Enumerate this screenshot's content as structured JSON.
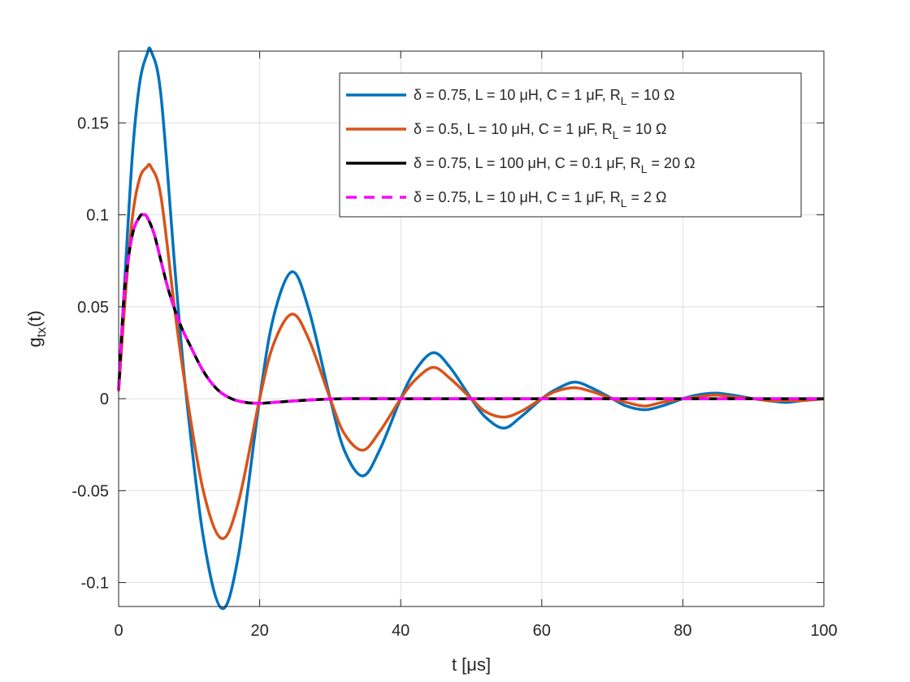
{
  "chart_data": {
    "type": "line",
    "title": "",
    "xlabel": "t [μs]",
    "ylabel": "g_tx(t)",
    "xlim": [
      0,
      100
    ],
    "ylim": [
      -0.113,
      0.189
    ],
    "grid": true,
    "legend_position": "top-right",
    "xticks": [
      0,
      20,
      40,
      60,
      80,
      100
    ],
    "xtick_labels": [
      "0",
      "20",
      "40",
      "60",
      "80",
      "100"
    ],
    "yticks": [
      -0.1,
      -0.05,
      0,
      0.05,
      0.1,
      0.15
    ],
    "ytick_labels": [
      "-0.1",
      "-0.05",
      "0",
      "0.05",
      "0.1",
      "0.15"
    ],
    "series": [
      {
        "name": "δ = 0.75, L = 10 μH, C = 1 μF, R_L = 10 Ω",
        "color": "#0072BD",
        "dash": "solid",
        "x": [
          0,
          1,
          2,
          3,
          4,
          4.6,
          6,
          8,
          9.5,
          12,
          14.6,
          17,
          20,
          22,
          24.6,
          27,
          30,
          32,
          34.6,
          37,
          40,
          42,
          44.6,
          47,
          50,
          52,
          54.6,
          57,
          60,
          62,
          64.6,
          67,
          70,
          72,
          74.6,
          77,
          80,
          82,
          84.6,
          87,
          90,
          92,
          94.6,
          97,
          100
        ],
        "y": [
          0.005,
          0.073,
          0.135,
          0.172,
          0.187,
          0.189,
          0.165,
          0.07,
          0.005,
          -0.075,
          -0.114,
          -0.085,
          0.0,
          0.045,
          0.069,
          0.048,
          0.0,
          -0.028,
          -0.042,
          -0.028,
          0.0,
          0.015,
          0.025,
          0.017,
          0.0,
          -0.01,
          -0.016,
          -0.01,
          0.0,
          0.005,
          0.009,
          0.006,
          0.0,
          -0.004,
          -0.006,
          -0.004,
          0.0,
          0.002,
          0.003,
          0.002,
          0.0,
          -0.001,
          -0.002,
          -0.001,
          0.0
        ]
      },
      {
        "name": "δ = 0.5, L = 10 μH, C = 1 μF, R_L = 10 Ω",
        "color": "#D95319",
        "dash": "solid",
        "x": [
          0,
          1,
          2,
          3,
          4,
          4.6,
          6,
          8,
          9.5,
          12,
          14.6,
          17,
          20,
          22,
          24.6,
          27,
          30,
          32,
          34.6,
          37,
          40,
          42,
          44.6,
          47,
          50,
          52,
          54.6,
          57,
          60,
          62,
          64.6,
          67,
          70,
          72,
          74.6,
          77,
          80,
          82,
          84.6,
          87,
          90,
          92,
          94.6,
          97,
          100
        ],
        "y": [
          0.004,
          0.058,
          0.1,
          0.12,
          0.126,
          0.126,
          0.11,
          0.047,
          0.006,
          -0.05,
          -0.076,
          -0.056,
          0.0,
          0.03,
          0.046,
          0.032,
          0.0,
          -0.019,
          -0.028,
          -0.018,
          0.0,
          0.01,
          0.017,
          0.011,
          0.0,
          -0.007,
          -0.01,
          -0.007,
          0.0,
          0.004,
          0.006,
          0.004,
          0.0,
          -0.002,
          -0.004,
          -0.002,
          0.0,
          0.001,
          0.002,
          0.001,
          0.0,
          -0.001,
          -0.001,
          -0.001,
          0.0
        ]
      },
      {
        "name": "δ = 0.75, L = 100 μH, C = 0.1 μF, R_L = 20 Ω",
        "color": "#000000",
        "dash": "solid",
        "x": [
          0,
          0.5,
          1,
          2,
          3,
          3.5,
          4,
          5,
          6,
          7,
          8,
          9,
          10,
          12,
          14,
          16,
          18,
          20,
          22,
          25,
          28,
          32,
          40,
          60,
          80,
          100
        ],
        "y": [
          0.005,
          0.04,
          0.065,
          0.09,
          0.099,
          0.1,
          0.099,
          0.09,
          0.075,
          0.06,
          0.048,
          0.038,
          0.03,
          0.015,
          0.005,
          0.0,
          -0.002,
          -0.0025,
          -0.002,
          -0.0012,
          -0.0005,
          0.0,
          0.0,
          0.0,
          0.0,
          0.0
        ]
      },
      {
        "name": "δ = 0.75, L = 10 μH, C = 1 μF, R_L = 2 Ω",
        "color": "#FF00FF",
        "dash": "dashed",
        "x": [
          0,
          0.5,
          1,
          2,
          3,
          3.5,
          4,
          5,
          6,
          7,
          8,
          9,
          10,
          12,
          14,
          16,
          18,
          20,
          22,
          25,
          28,
          32,
          40,
          60,
          80,
          100
        ],
        "y": [
          0.005,
          0.04,
          0.065,
          0.09,
          0.099,
          0.1,
          0.099,
          0.09,
          0.075,
          0.06,
          0.048,
          0.038,
          0.03,
          0.015,
          0.005,
          0.0,
          -0.002,
          -0.0025,
          -0.002,
          -0.0012,
          -0.0005,
          0.0,
          0.0,
          0.0,
          0.0,
          0.0
        ]
      }
    ],
    "legend": [
      {
        "pre": "δ = 0.75, L = 10 μH, C = 1 μF, R",
        "sub": "L",
        "post": " = 10 Ω"
      },
      {
        "pre": "δ = 0.5, L = 10 μH, C = 1 μF, R",
        "sub": "L",
        "post": " = 10 Ω"
      },
      {
        "pre": "δ = 0.75, L = 100 μH, C = 0.1 μF, R",
        "sub": "L",
        "post": " = 20 Ω"
      },
      {
        "pre": "δ = 0.75, L = 10 μH, C = 1 μF, R",
        "sub": "L",
        "post": " = 2 Ω"
      }
    ],
    "ylabel_parts": {
      "main": "g",
      "sub": "tx",
      "post": "(t)"
    }
  }
}
